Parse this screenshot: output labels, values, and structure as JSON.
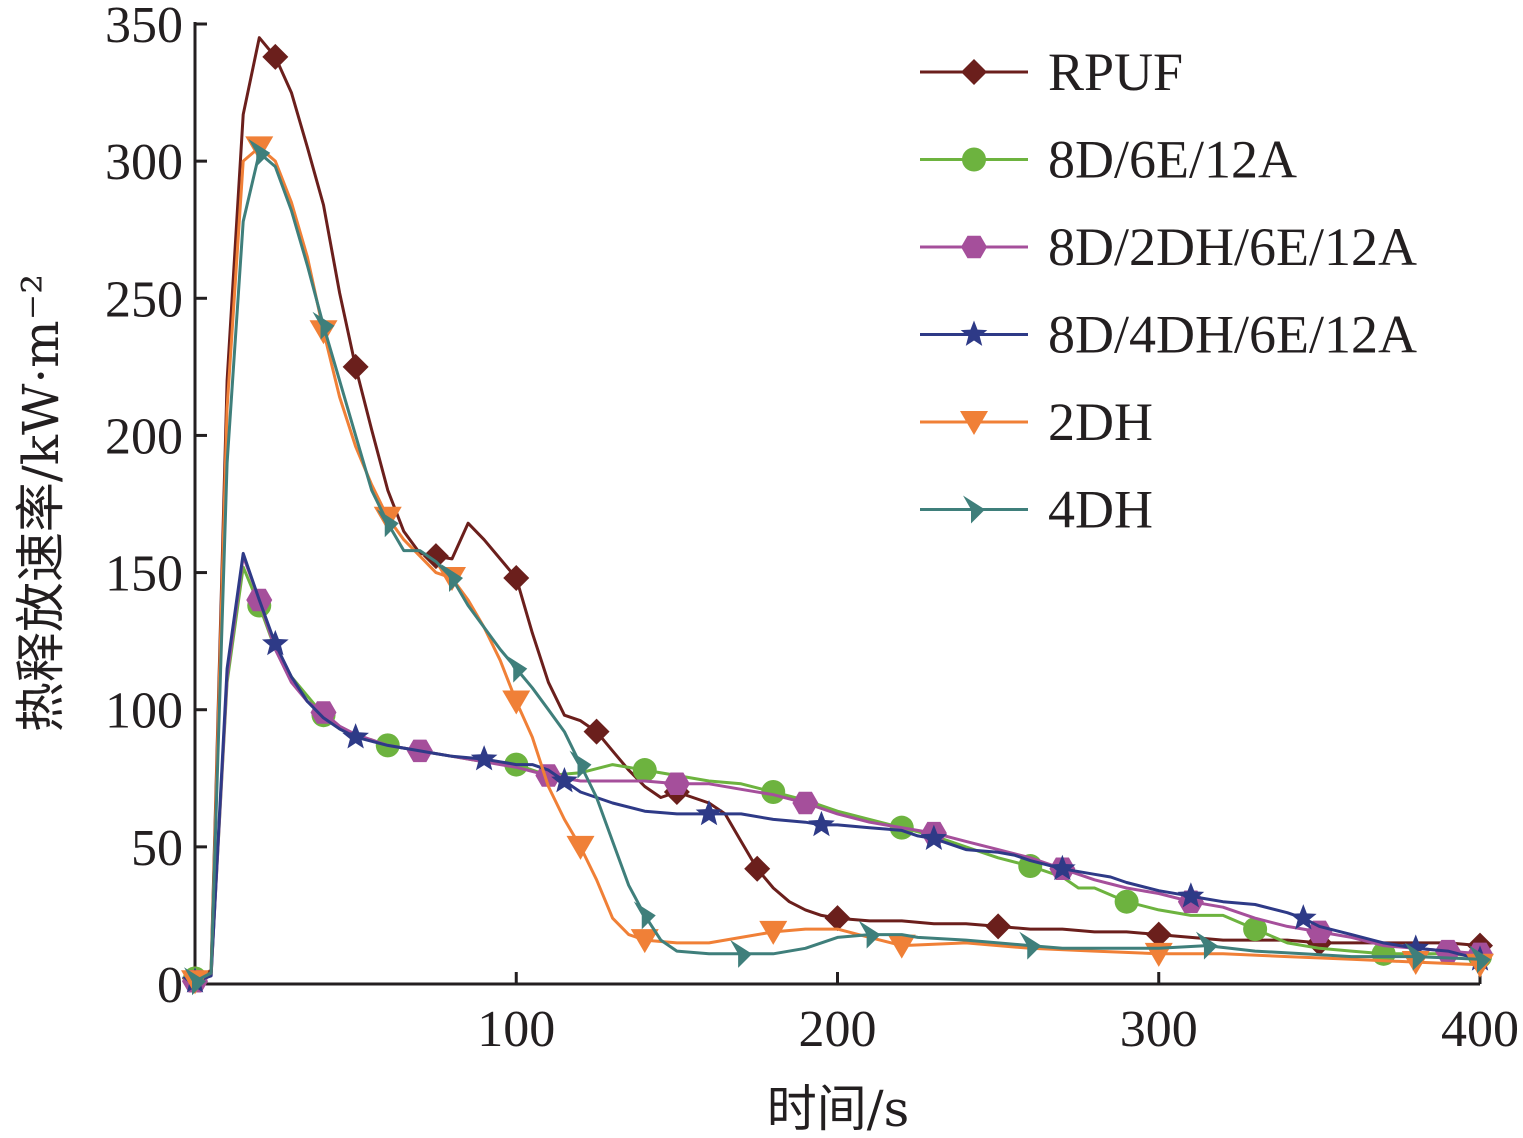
{
  "chart_data": {
    "type": "line",
    "xlabel": "时间/s",
    "ylabel": "热释放速率/kW·m⁻²",
    "xlim": [
      0,
      400
    ],
    "ylim": [
      0,
      350
    ],
    "x_ticks": [
      100,
      200,
      300,
      400
    ],
    "y_ticks": [
      0,
      50,
      100,
      150,
      200,
      250,
      300,
      350
    ],
    "grid": false,
    "legend_position": "top-right",
    "series": [
      {
        "name": "RPUF",
        "color": "#6b1f1c",
        "marker": "diamond",
        "x": [
          0,
          5,
          10,
          15,
          20,
          25,
          30,
          35,
          40,
          45,
          50,
          55,
          60,
          65,
          70,
          75,
          80,
          85,
          90,
          95,
          100,
          105,
          110,
          115,
          120,
          125,
          130,
          135,
          140,
          145,
          150,
          155,
          160,
          165,
          170,
          175,
          180,
          185,
          190,
          195,
          200,
          210,
          220,
          230,
          240,
          250,
          260,
          270,
          280,
          290,
          300,
          310,
          320,
          330,
          340,
          350,
          360,
          370,
          380,
          390,
          400
        ],
        "y": [
          2,
          5,
          220,
          317,
          345,
          338,
          325,
          305,
          284,
          252,
          225,
          202,
          180,
          165,
          157,
          156,
          155,
          168,
          162,
          155,
          148,
          128,
          110,
          98,
          96,
          92,
          85,
          78,
          72,
          68,
          70,
          68,
          66,
          62,
          52,
          42,
          35,
          30,
          27,
          25,
          24,
          23,
          23,
          22,
          22,
          21,
          20,
          20,
          19,
          19,
          18,
          17,
          16,
          16,
          16,
          15,
          15,
          15,
          15,
          15,
          14
        ]
      },
      {
        "name": "8D/6E/12A",
        "color": "#6db33f",
        "marker": "circle",
        "x": [
          0,
          5,
          10,
          15,
          20,
          25,
          30,
          35,
          40,
          45,
          50,
          55,
          60,
          70,
          80,
          90,
          100,
          110,
          120,
          130,
          140,
          150,
          160,
          170,
          180,
          190,
          200,
          210,
          220,
          230,
          240,
          250,
          260,
          270,
          275,
          280,
          290,
          300,
          310,
          320,
          330,
          340,
          350,
          360,
          370,
          380,
          390,
          400
        ],
        "y": [
          2,
          4,
          110,
          152,
          138,
          122,
          112,
          105,
          98,
          93,
          90,
          89,
          87,
          85,
          83,
          81,
          80,
          76,
          77,
          80,
          78,
          76,
          74,
          73,
          70,
          67,
          63,
          60,
          57,
          54,
          50,
          46,
          43,
          39,
          35,
          35,
          30,
          27,
          25,
          25,
          20,
          15,
          13,
          12,
          11,
          11,
          11,
          10
        ]
      },
      {
        "name": "8D/2DH/6E/12A",
        "color": "#a54f9b",
        "marker": "hexagon",
        "x": [
          0,
          5,
          10,
          15,
          20,
          25,
          30,
          35,
          40,
          45,
          50,
          60,
          70,
          80,
          90,
          100,
          110,
          120,
          130,
          140,
          150,
          160,
          170,
          180,
          190,
          200,
          210,
          220,
          230,
          240,
          250,
          260,
          270,
          280,
          290,
          300,
          310,
          320,
          330,
          340,
          350,
          360,
          370,
          380,
          390,
          400
        ],
        "y": [
          1,
          3,
          112,
          156,
          140,
          122,
          110,
          103,
          99,
          94,
          91,
          87,
          85,
          83,
          81,
          79,
          76,
          74,
          74,
          74,
          73,
          73,
          71,
          69,
          66,
          62,
          59,
          57,
          55,
          52,
          49,
          46,
          42,
          38,
          35,
          33,
          30,
          28,
          24,
          21,
          19,
          17,
          14,
          13,
          12,
          11
        ]
      },
      {
        "name": "8D/4DH/6E/12A",
        "color": "#2e3a87",
        "marker": "star",
        "x": [
          0,
          5,
          10,
          15,
          20,
          25,
          30,
          35,
          40,
          45,
          50,
          60,
          70,
          75,
          80,
          90,
          95,
          100,
          105,
          110,
          115,
          120,
          130,
          140,
          150,
          160,
          165,
          170,
          180,
          190,
          195,
          200,
          210,
          220,
          225,
          230,
          240,
          250,
          255,
          260,
          270,
          280,
          285,
          290,
          300,
          310,
          315,
          320,
          330,
          340,
          345,
          350,
          360,
          370,
          375,
          380,
          390,
          400
        ],
        "y": [
          1,
          3,
          115,
          157,
          140,
          124,
          112,
          103,
          97,
          93,
          90,
          87,
          85,
          84,
          83,
          82,
          81,
          80,
          80,
          78,
          74,
          70,
          66,
          63,
          62,
          62,
          62,
          62,
          60,
          59,
          58,
          58,
          57,
          56,
          54,
          53,
          49,
          48,
          47,
          45,
          42,
          40,
          39,
          37,
          34,
          32,
          31,
          30,
          29,
          26,
          24,
          21,
          18,
          15,
          14,
          13,
          12,
          9
        ]
      },
      {
        "name": "2DH",
        "color": "#f08037",
        "marker": "triangle-down",
        "x": [
          0,
          5,
          10,
          15,
          20,
          25,
          30,
          35,
          40,
          45,
          50,
          55,
          60,
          65,
          70,
          75,
          80,
          85,
          90,
          95,
          100,
          105,
          110,
          115,
          120,
          125,
          130,
          135,
          140,
          150,
          160,
          170,
          180,
          190,
          200,
          210,
          220,
          240,
          260,
          280,
          300,
          320,
          340,
          360,
          380,
          400
        ],
        "y": [
          1,
          4,
          210,
          300,
          305,
          300,
          285,
          265,
          238,
          214,
          196,
          182,
          170,
          162,
          156,
          150,
          148,
          140,
          130,
          118,
          103,
          90,
          72,
          60,
          50,
          38,
          24,
          18,
          16,
          15,
          15,
          17,
          19,
          20,
          20,
          17,
          14,
          15,
          13,
          12,
          11,
          11,
          10,
          9,
          8,
          7
        ]
      },
      {
        "name": "4DH",
        "color": "#3f7f7b",
        "marker": "half-triangle",
        "x": [
          0,
          5,
          10,
          15,
          20,
          25,
          30,
          35,
          40,
          45,
          50,
          55,
          60,
          65,
          70,
          75,
          80,
          85,
          90,
          95,
          100,
          105,
          110,
          115,
          120,
          125,
          130,
          135,
          140,
          145,
          150,
          160,
          170,
          180,
          190,
          200,
          210,
          220,
          225,
          240,
          260,
          270,
          280,
          300,
          315,
          330,
          345,
          360,
          380,
          400
        ],
        "y": [
          1,
          4,
          190,
          278,
          303,
          298,
          282,
          262,
          240,
          220,
          200,
          180,
          168,
          158,
          158,
          154,
          148,
          138,
          130,
          122,
          115,
          108,
          100,
          92,
          80,
          68,
          52,
          36,
          25,
          16,
          12,
          11,
          11,
          11,
          13,
          17,
          18,
          18,
          17,
          16,
          14,
          13,
          13,
          13,
          14,
          12,
          11,
          10,
          10,
          9
        ]
      }
    ]
  }
}
